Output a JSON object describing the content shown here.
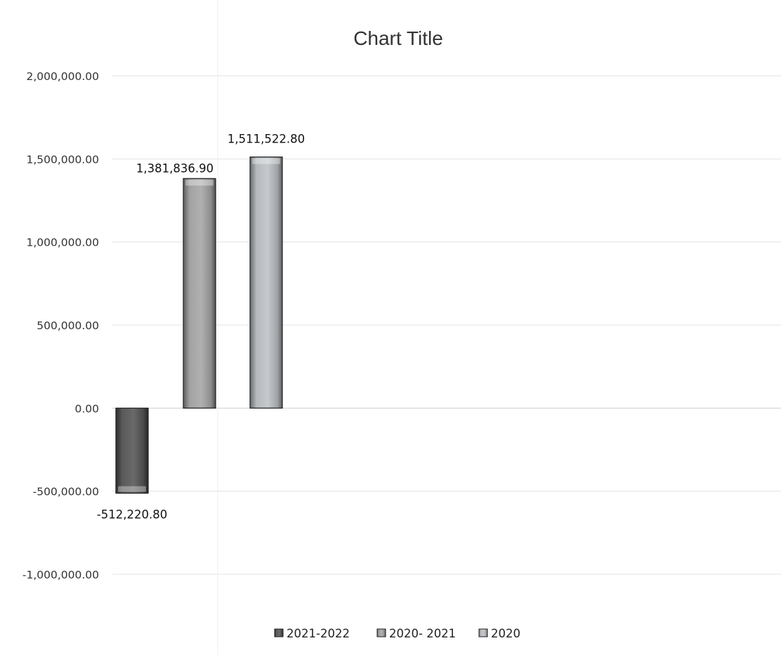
{
  "chart_data": {
    "type": "bar",
    "title": "Chart Title",
    "xlabel": "",
    "ylabel": "",
    "categories": [
      ""
    ],
    "series": [
      {
        "name": "2021-2022",
        "values": [
          -512220.8
        ],
        "label": "-512,220.80",
        "color": "#4a4a4a"
      },
      {
        "name": "2020- 2021",
        "values": [
          1381836.9
        ],
        "label": "1,381,836.90",
        "color": "#9a9a9a"
      },
      {
        "name": "2020",
        "values": [
          1511522.8
        ],
        "label": "1,511,522.80",
        "color": "#b5b8bc"
      }
    ],
    "ylim": [
      -1000000,
      2000000
    ],
    "yticks": [
      2000000,
      1500000,
      1000000,
      500000,
      0,
      -500000,
      -1000000
    ],
    "ytick_labels": [
      "2,000,000.00",
      "1,500,000.00",
      "1,000,000.00",
      "500,000.00",
      "0.00",
      "-500,000.00",
      "-1,000,000.00"
    ],
    "grid": true,
    "legend_position": "bottom"
  }
}
